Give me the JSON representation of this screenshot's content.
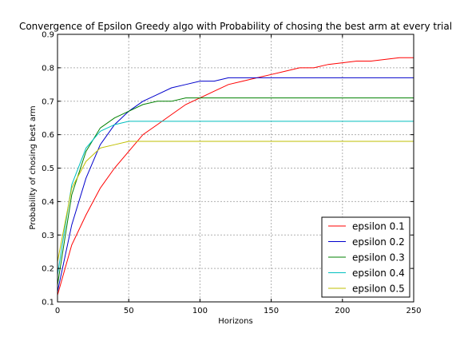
{
  "chart_data": {
    "type": "line",
    "title": "Convergence of Epsilon Greedy algo with Probability of chosing the best arm at every trial",
    "xlabel": "Horizons",
    "ylabel": "Probability of chosing best arm",
    "xlim": [
      0,
      250
    ],
    "ylim": [
      0.1,
      0.9
    ],
    "xticks": [
      "0",
      "50",
      "100",
      "150",
      "200",
      "250"
    ],
    "yticks": [
      "0.1",
      "0.2",
      "0.3",
      "0.4",
      "0.5",
      "0.6",
      "0.7",
      "0.8",
      "0.9"
    ],
    "grid": true,
    "legend_position": "lower right",
    "x": [
      0,
      10,
      20,
      30,
      40,
      50,
      60,
      70,
      80,
      90,
      100,
      110,
      120,
      130,
      140,
      150,
      160,
      170,
      180,
      190,
      200,
      210,
      220,
      230,
      240,
      250
    ],
    "series": [
      {
        "name": "epsilon 0.1",
        "color": "#ff0000",
        "values": [
          0.12,
          0.27,
          0.36,
          0.44,
          0.5,
          0.55,
          0.6,
          0.63,
          0.66,
          0.69,
          0.71,
          0.73,
          0.75,
          0.76,
          0.77,
          0.78,
          0.79,
          0.8,
          0.8,
          0.81,
          0.815,
          0.82,
          0.82,
          0.825,
          0.83,
          0.83
        ]
      },
      {
        "name": "epsilon 0.2",
        "color": "#0000cc",
        "values": [
          0.13,
          0.33,
          0.47,
          0.57,
          0.63,
          0.67,
          0.7,
          0.72,
          0.74,
          0.75,
          0.76,
          0.76,
          0.77,
          0.77,
          0.77,
          0.77,
          0.77,
          0.77,
          0.77,
          0.77,
          0.77,
          0.77,
          0.77,
          0.77,
          0.77,
          0.77
        ]
      },
      {
        "name": "epsilon 0.3",
        "color": "#008000",
        "values": [
          0.15,
          0.42,
          0.55,
          0.62,
          0.65,
          0.67,
          0.69,
          0.7,
          0.7,
          0.71,
          0.71,
          0.71,
          0.71,
          0.71,
          0.71,
          0.71,
          0.71,
          0.71,
          0.71,
          0.71,
          0.71,
          0.71,
          0.71,
          0.71,
          0.71,
          0.71
        ]
      },
      {
        "name": "epsilon 0.4",
        "color": "#00bfbf",
        "values": [
          0.18,
          0.45,
          0.56,
          0.61,
          0.63,
          0.64,
          0.64,
          0.64,
          0.64,
          0.64,
          0.64,
          0.64,
          0.64,
          0.64,
          0.64,
          0.64,
          0.64,
          0.64,
          0.64,
          0.64,
          0.64,
          0.64,
          0.64,
          0.64,
          0.64,
          0.64
        ]
      },
      {
        "name": "epsilon 0.5",
        "color": "#bfbf00",
        "values": [
          0.22,
          0.44,
          0.52,
          0.56,
          0.57,
          0.58,
          0.58,
          0.58,
          0.58,
          0.58,
          0.58,
          0.58,
          0.58,
          0.58,
          0.58,
          0.58,
          0.58,
          0.58,
          0.58,
          0.58,
          0.58,
          0.58,
          0.58,
          0.58,
          0.58,
          0.58
        ]
      }
    ]
  }
}
